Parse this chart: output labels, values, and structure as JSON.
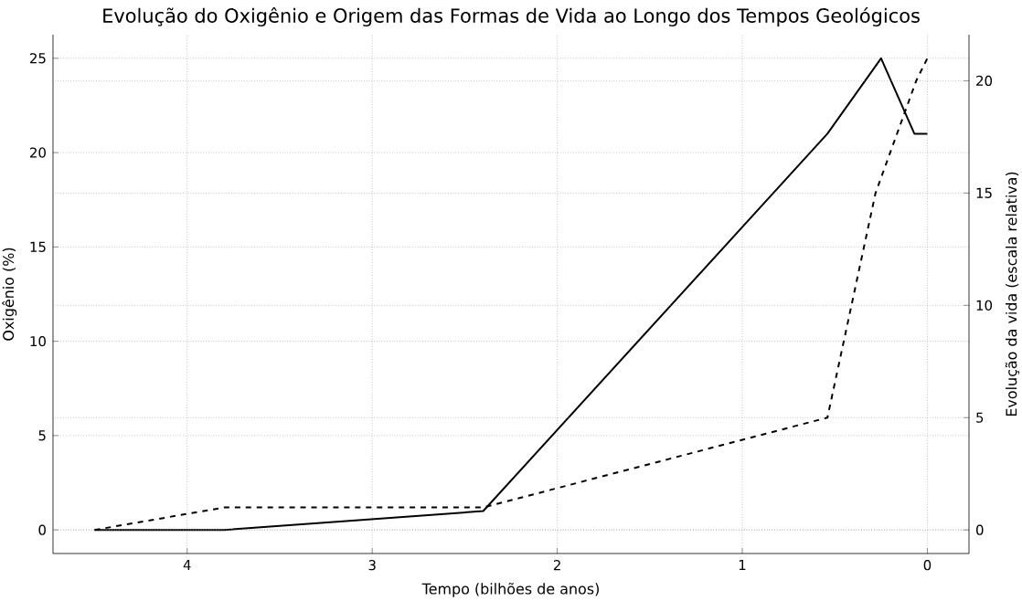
{
  "chart_data": {
    "type": "line",
    "title": "Evolução do Oxigênio e Origem das Formas de Vida ao Longo dos Tempos Geológicos",
    "xlabel": "Tempo (bilhões de anos)",
    "ylabel": "Oxigênio (%)",
    "y2label": "Evolução da vida (escala relativa)",
    "xlim": [
      4.725,
      -0.225
    ],
    "xticks": [
      4,
      3,
      2,
      1,
      0
    ],
    "ylim": [
      -1.25,
      26.25
    ],
    "yticks": [
      0,
      5,
      10,
      15,
      20,
      25
    ],
    "y2lim": [
      -1.05,
      22.05
    ],
    "y2ticks": [
      0,
      5,
      10,
      15,
      20
    ],
    "grid": true,
    "legend": false,
    "marker": "none",
    "series": [
      {
        "color": "#000000",
        "line_style": "solid",
        "x": [
          4.5,
          3.8,
          2.4,
          0.54,
          0.25,
          0.07,
          0
        ],
        "values": [
          0,
          0,
          1,
          21,
          25,
          21,
          21
        ]
      },
      {
        "color": "#000000",
        "line_style": "dashed",
        "axis": "y2",
        "x": [
          4.5,
          3.8,
          2.4,
          0.54,
          0.28,
          0.06,
          0
        ],
        "values": [
          0,
          1,
          1,
          5,
          15,
          20,
          21
        ]
      }
    ]
  }
}
